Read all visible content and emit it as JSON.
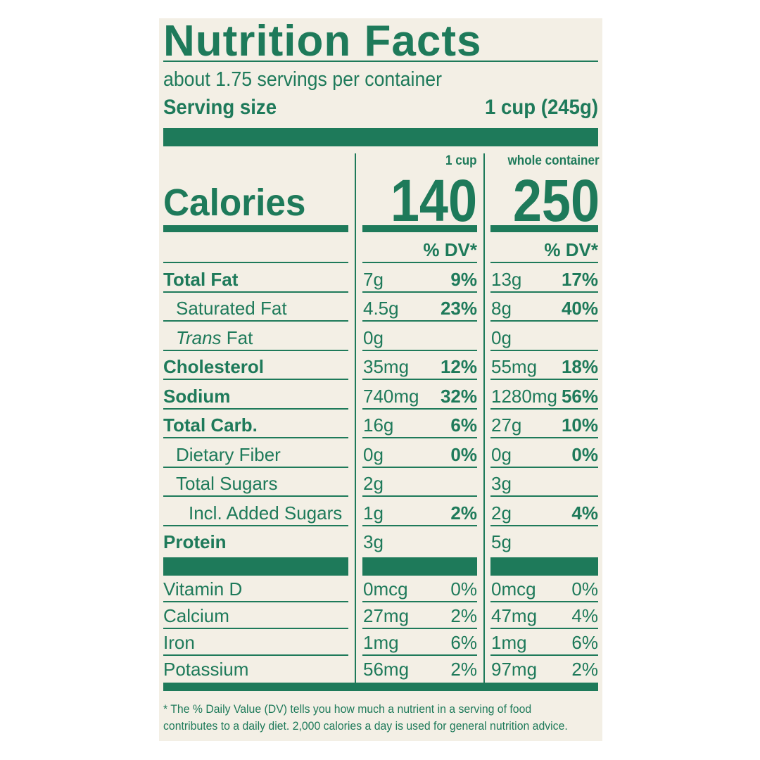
{
  "title": "Nutrition Facts",
  "servings_per_container": "about 1.75 servings per container",
  "serving_size": {
    "label": "Serving size",
    "value": "1 cup (245g)"
  },
  "columns": {
    "col1": "1 cup",
    "col2": "whole container"
  },
  "calories": {
    "label": "Calories",
    "col1": "140",
    "col2": "250"
  },
  "dv_header": "% DV*",
  "nutrients": [
    {
      "name": "Total Fat",
      "style": "bold",
      "indent": 0,
      "col1_amt": "7g",
      "col1_dv": "9%",
      "col2_amt": "13g",
      "col2_dv": "17%"
    },
    {
      "name": "Saturated Fat",
      "style": "normal",
      "indent": 1,
      "col1_amt": "4.5g",
      "col1_dv": "23%",
      "col2_amt": "8g",
      "col2_dv": "40%"
    },
    {
      "name_italic": "Trans",
      "name": " Fat",
      "style": "normal",
      "indent": 1,
      "col1_amt": "0g",
      "col1_dv": "",
      "col2_amt": "0g",
      "col2_dv": ""
    },
    {
      "name": "Cholesterol",
      "style": "bold",
      "indent": 0,
      "col1_amt": "35mg",
      "col1_dv": "12%",
      "col2_amt": "55mg",
      "col2_dv": "18%"
    },
    {
      "name": "Sodium",
      "style": "bold",
      "indent": 0,
      "col1_amt": "740mg",
      "col1_dv": "32%",
      "col2_amt": "1280mg",
      "col2_dv": "56%"
    },
    {
      "name": "Total Carb.",
      "style": "bold",
      "indent": 0,
      "col1_amt": "16g",
      "col1_dv": "6%",
      "col2_amt": "27g",
      "col2_dv": "10%"
    },
    {
      "name": "Dietary Fiber",
      "style": "normal",
      "indent": 1,
      "col1_amt": "0g",
      "col1_dv": "0%",
      "col2_amt": "0g",
      "col2_dv": "0%"
    },
    {
      "name": "Total Sugars",
      "style": "normal",
      "indent": 1,
      "col1_amt": "2g",
      "col1_dv": "",
      "col2_amt": "3g",
      "col2_dv": ""
    },
    {
      "name": "Incl. Added Sugars",
      "style": "normal",
      "indent": 2,
      "col1_amt": "1g",
      "col1_dv": "2%",
      "col2_amt": "2g",
      "col2_dv": "4%"
    },
    {
      "name": "Protein",
      "style": "bold",
      "indent": 0,
      "col1_amt": "3g",
      "col1_dv": "",
      "col2_amt": "5g",
      "col2_dv": ""
    }
  ],
  "vitamins": [
    {
      "name": "Vitamin D",
      "col1_amt": "0mcg",
      "col1_dv": "0%",
      "col2_amt": "0mcg",
      "col2_dv": "0%"
    },
    {
      "name": "Calcium",
      "col1_amt": "27mg",
      "col1_dv": "2%",
      "col2_amt": "47mg",
      "col2_dv": "4%"
    },
    {
      "name": "Iron",
      "col1_amt": "1mg",
      "col1_dv": "6%",
      "col2_amt": "1mg",
      "col2_dv": "6%"
    },
    {
      "name": "Potassium",
      "col1_amt": "56mg",
      "col1_dv": "2%",
      "col2_amt": "97mg",
      "col2_dv": "2%"
    }
  ],
  "footnote": "* The % Daily Value (DV) tells you how much a nutrient in a serving of food contributes to a daily diet. 2,000 calories a day is used for general nutrition advice.",
  "colors": {
    "ink": "#1e7a5a",
    "paper": "#f3efe5"
  }
}
